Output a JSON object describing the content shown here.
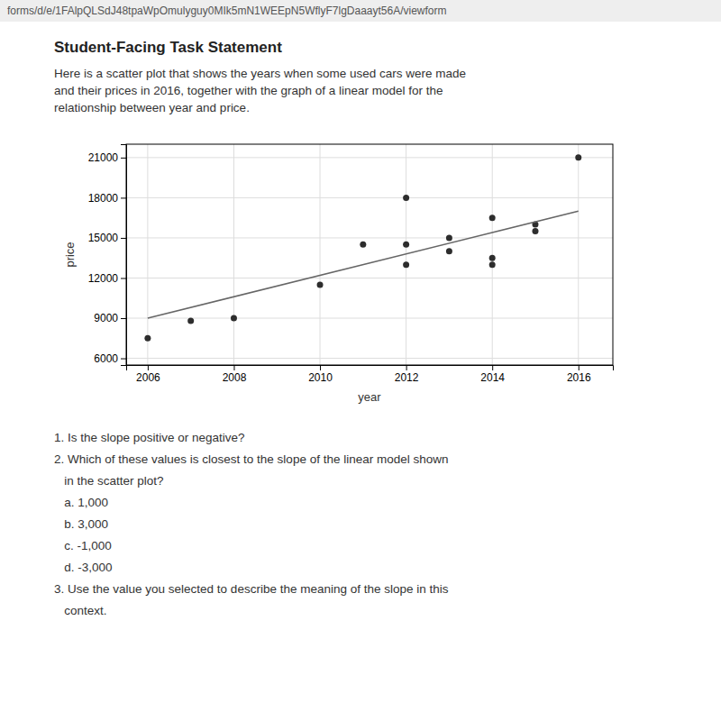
{
  "chart_data": {
    "type": "scatter",
    "title": "Student-Facing Task Statement",
    "annotations": [
      [
        "forms/d/e/1FAlpQLSdJ48tpaWpOmulyguy0MIk5mN1WEEpN5WflyF7lgDaaayt56A/viewform"
      ],
      [
        "Here is a scatter plot that shows the years when some used cars were made",
        "and their prices in 2016, together with the graph of a linear model for the",
        "relationship between year and price."
      ],
      [
        "1. Is the slope positive or negative?",
        "2. Which of these values is closest to the slope of the linear model shown",
        "   in the scatter plot?",
        "   a. 1,000",
        "   b. 3,000",
        "   c. -1,000",
        "   d. -3,000",
        "3. Use the value you selected to describe the meaning of the slope in this",
        "   context."
      ]
    ],
    "xlabel": "year",
    "ylabel": "price",
    "xlim": [
      2005.5,
      2016.8
    ],
    "ylim": [
      5500,
      22000
    ],
    "xticks": [
      2006,
      2008,
      2010,
      2012,
      2014,
      2016
    ],
    "yticks": [
      6000,
      9000,
      12000,
      15000,
      18000,
      21000
    ],
    "grid": true,
    "series": [
      {
        "type": "scatter",
        "color": "#2d2d2d",
        "x": [
          2006,
          2007,
          2008,
          2010,
          2011,
          2012,
          2012,
          2012,
          2013,
          2013,
          2014,
          2014,
          2014,
          2015,
          2015,
          2016
        ],
        "values": [
          7500,
          8800,
          9000,
          11500,
          14500,
          14500,
          18000,
          13000,
          15000,
          14000,
          16500,
          13000,
          13500,
          16000,
          15500,
          21000
        ]
      },
      {
        "type": "line",
        "color": "#666666",
        "x": [
          2006,
          2016
        ],
        "values": [
          9000,
          17000
        ]
      }
    ]
  }
}
